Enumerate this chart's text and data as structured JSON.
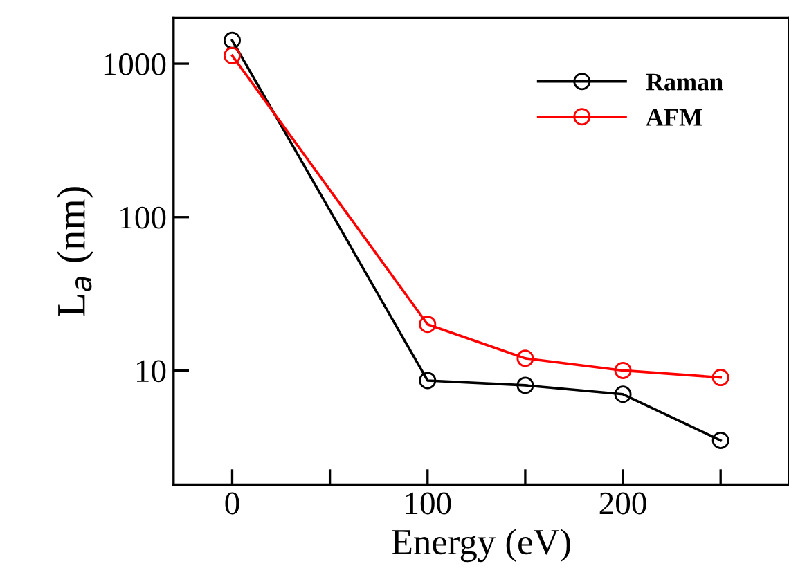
{
  "chart_data": {
    "type": "line",
    "xlabel": "Energy (eV)",
    "ylabel": "L$_{a}$ (nm)",
    "x": [
      0,
      100,
      150,
      200,
      250
    ],
    "series": [
      {
        "name": "Raman",
        "color": "#000000",
        "values": [
          1420,
          8.6,
          8.0,
          7.0,
          3.5
        ]
      },
      {
        "name": "AFM",
        "color": "#ff0000",
        "values": [
          1130,
          20,
          12,
          10,
          9.0
        ]
      }
    ],
    "log": "y",
    "marker": "circle",
    "line_style": "solid",
    "legend": "top right",
    "grid": false,
    "xlim": [
      -30,
      285
    ],
    "xticks": [
      0,
      {
        "value": 50,
        "label": null
      },
      100,
      {
        "value": 150,
        "label": null
      },
      200,
      {
        "value": 250,
        "label": null
      }
    ],
    "ylim": [
      1.8,
      2000
    ],
    "yticks": [
      10,
      100,
      1000
    ]
  }
}
